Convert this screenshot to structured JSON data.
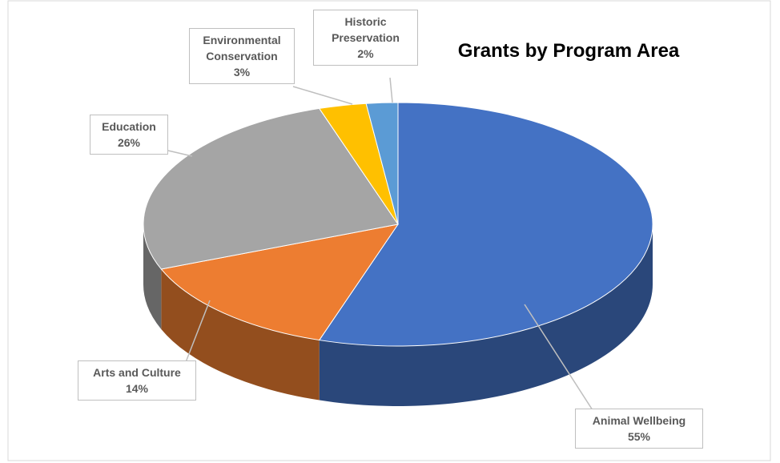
{
  "chart_data": {
    "type": "pie3d",
    "title": "Grants by Program Area",
    "categories": [
      "Animal Wellbeing",
      "Arts and Culture",
      "Education",
      "Environmental Conservation",
      "Historic Preservation"
    ],
    "values": [
      55,
      14,
      26,
      3,
      2
    ],
    "value_labels": [
      "55%",
      "14%",
      "26%",
      "3%",
      "2%"
    ],
    "colors": [
      "#4472c4",
      "#ed7d31",
      "#a5a5a5",
      "#ffc000",
      "#5b9bd5"
    ]
  }
}
